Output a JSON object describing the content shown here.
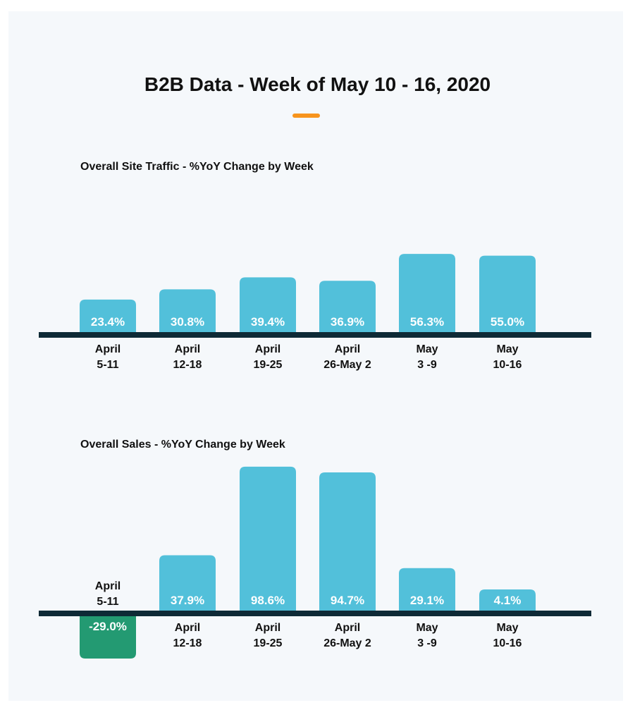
{
  "header": {
    "title": "B2B Data - Week of May 10 - 16, 2020"
  },
  "colors": {
    "background": "#f5f8fb",
    "accent": "#f7941d",
    "positive_bar": "#52c0da",
    "negative_bar": "#239a72",
    "baseline": "#0e2a36",
    "bar_label": "#ffffff",
    "text": "#111111"
  },
  "chart_data": [
    {
      "type": "bar",
      "title": "Overall Site Traffic - %YoY Change by Week",
      "categories": [
        [
          "April",
          "5-11"
        ],
        [
          "April",
          "12-18"
        ],
        [
          "April",
          "19-25"
        ],
        [
          "April",
          "26-May 2"
        ],
        [
          "May",
          "3 -9"
        ],
        [
          "May",
          "10-16"
        ]
      ],
      "values": [
        23.4,
        30.8,
        39.4,
        36.9,
        56.3,
        55.0
      ],
      "value_labels": [
        "23.4%",
        "30.8%",
        "39.4%",
        "36.9%",
        "56.3%",
        "55.0%"
      ],
      "unit": "%",
      "grid": false,
      "legend": "none"
    },
    {
      "type": "bar",
      "title": "Overall Sales - %YoY Change by Week",
      "categories": [
        [
          "April",
          "5-11"
        ],
        [
          "April",
          "12-18"
        ],
        [
          "April",
          "19-25"
        ],
        [
          "April",
          "26-May 2"
        ],
        [
          "May",
          "3 -9"
        ],
        [
          "May",
          "10-16"
        ]
      ],
      "values": [
        -29.0,
        37.9,
        98.6,
        94.7,
        29.1,
        4.1
      ],
      "value_labels": [
        "-29.0%",
        "37.9%",
        "98.6%",
        "94.7%",
        "29.1%",
        "4.1%"
      ],
      "unit": "%",
      "grid": false,
      "legend": "none"
    }
  ]
}
